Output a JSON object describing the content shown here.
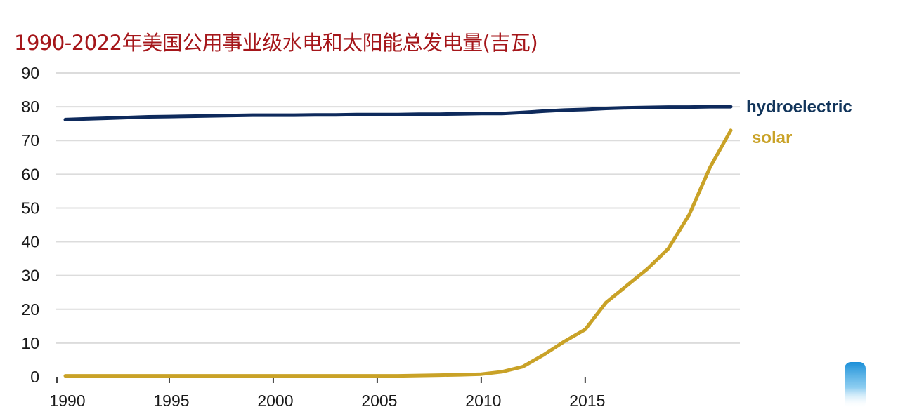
{
  "chart_data": {
    "type": "line",
    "title": "1990-2022年美国公用事业级水电和太阳能总发电量(吉瓦)",
    "xlabel": "",
    "ylabel": "",
    "xlim": [
      1990,
      2022
    ],
    "ylim": [
      0,
      90
    ],
    "x_ticks": [
      1990,
      1995,
      2000,
      2005,
      2010,
      2015
    ],
    "y_ticks": [
      0,
      10,
      20,
      30,
      40,
      50,
      60,
      70,
      80,
      90
    ],
    "grid": true,
    "series": [
      {
        "name": "hydroelectric",
        "color": "#0e2a5c",
        "label_color": "#12355b",
        "x": [
          1990,
          1991,
          1992,
          1993,
          1994,
          1995,
          1996,
          1997,
          1998,
          1999,
          2000,
          2001,
          2002,
          2003,
          2004,
          2005,
          2006,
          2007,
          2008,
          2009,
          2010,
          2011,
          2012,
          2013,
          2014,
          2015,
          2016,
          2017,
          2018,
          2019,
          2020,
          2021,
          2022
        ],
        "values": [
          76.2,
          76.4,
          76.6,
          76.8,
          77.0,
          77.1,
          77.2,
          77.3,
          77.4,
          77.5,
          77.5,
          77.5,
          77.6,
          77.6,
          77.7,
          77.7,
          77.7,
          77.8,
          77.8,
          77.9,
          78.0,
          78.0,
          78.3,
          78.7,
          79.0,
          79.2,
          79.5,
          79.7,
          79.8,
          79.9,
          79.9,
          80.0,
          80.0
        ]
      },
      {
        "name": "solar",
        "color": "#c9a227",
        "label_color": "#c9a227",
        "x": [
          1990,
          1991,
          1992,
          1993,
          1994,
          1995,
          1996,
          1997,
          1998,
          1999,
          2000,
          2001,
          2002,
          2003,
          2004,
          2005,
          2006,
          2007,
          2008,
          2009,
          2010,
          2011,
          2012,
          2013,
          2014,
          2015,
          2016,
          2017,
          2018,
          2019,
          2020,
          2021,
          2022
        ],
        "values": [
          0.3,
          0.3,
          0.3,
          0.3,
          0.3,
          0.3,
          0.3,
          0.3,
          0.3,
          0.3,
          0.3,
          0.3,
          0.3,
          0.3,
          0.3,
          0.3,
          0.3,
          0.4,
          0.5,
          0.6,
          0.8,
          1.5,
          3.0,
          6.5,
          10.5,
          14.0,
          22.0,
          27.0,
          32.0,
          38.0,
          48.0,
          62.0,
          73.0
        ]
      }
    ]
  }
}
